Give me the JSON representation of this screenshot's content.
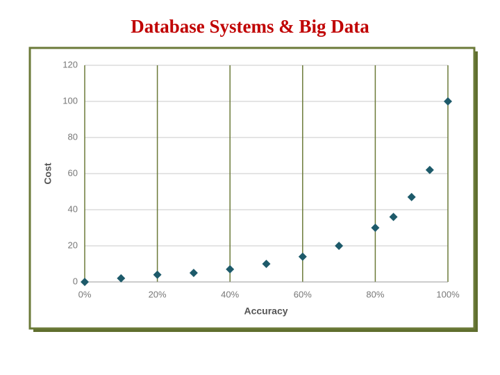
{
  "chart_data": {
    "type": "scatter",
    "title": "Database Systems & Big Data",
    "x_label": "Accuracy",
    "y_label": "Cost",
    "x": [
      0,
      10,
      20,
      30,
      40,
      50,
      60,
      70,
      80,
      85,
      90,
      95,
      100
    ],
    "values": [
      0,
      2,
      4,
      5,
      7,
      10,
      14,
      20,
      30,
      36,
      47,
      62,
      100
    ],
    "color": "#1d5a6a",
    "xlim": [
      0,
      100
    ],
    "xticks": [
      {
        "value": 0,
        "label": "0%"
      },
      {
        "value": 20,
        "label": "20%"
      },
      {
        "value": 40,
        "label": "40%"
      },
      {
        "value": 60,
        "label": "60%"
      },
      {
        "value": 80,
        "label": "80%"
      },
      {
        "value": 100,
        "label": "100%"
      }
    ],
    "ylim": [
      0,
      120
    ],
    "yticks": [
      0,
      20,
      40,
      60,
      80,
      100,
      120
    ],
    "grid": true
  }
}
